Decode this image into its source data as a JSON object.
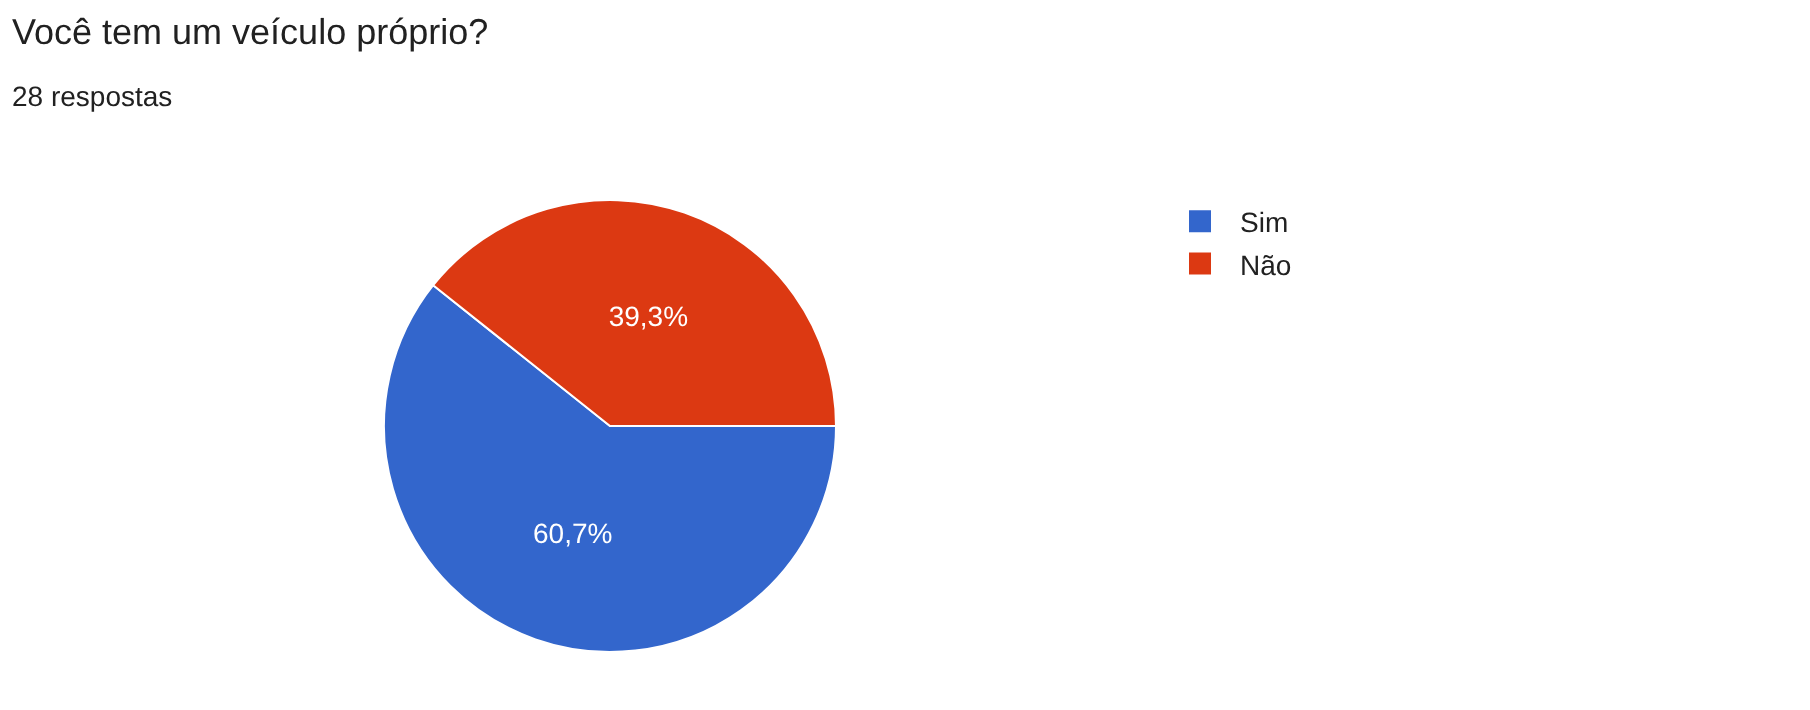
{
  "chart_data": {
    "type": "pie",
    "title": "Você tem um veículo próprio?",
    "subtitle": "28 respostas",
    "categories": [
      "Sim",
      "Não"
    ],
    "values": [
      60.7,
      39.3
    ],
    "colors": [
      "#3366cc",
      "#dc3912"
    ],
    "value_labels": [
      "60,7%",
      "39,3%"
    ],
    "legend": "right"
  }
}
